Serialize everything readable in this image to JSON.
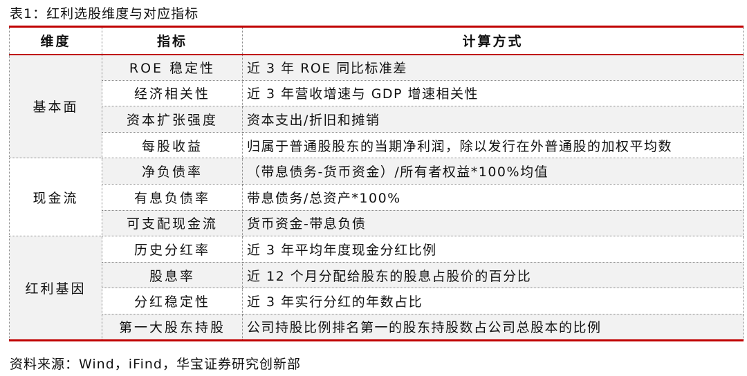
{
  "title": "表1：红利选股维度与对应指标",
  "headers": [
    "维度",
    "指标",
    "计算方式"
  ],
  "groups": [
    {
      "name": "基本面",
      "rows": [
        {
          "indicator": "ROE 稳定性",
          "method": "近 3 年 ROE 同比标准差"
        },
        {
          "indicator": "经济相关性",
          "method": "近 3 年营收增速与 GDP 增速相关性"
        },
        {
          "indicator": "资本扩张强度",
          "method": "资本支出/折旧和摊销"
        },
        {
          "indicator": "每股收益",
          "method": "归属于普通股股东的当期净利润，除以发行在外普通股的加权平均数"
        }
      ]
    },
    {
      "name": "现金流",
      "rows": [
        {
          "indicator": "净负债率",
          "method": "（带息债务-货币资金）/所有者权益*100%均值"
        },
        {
          "indicator": "有息负债率",
          "method": "带息债务/总资产*100%"
        },
        {
          "indicator": "可支配现金流",
          "method": "货币资金-带息负债"
        }
      ]
    },
    {
      "name": "红利基因",
      "rows": [
        {
          "indicator": "历史分红率",
          "method": "近 3 年平均年度现金分红比例"
        },
        {
          "indicator": "股息率",
          "method": "近 12 个月分配给股东的股息占股价的百分比"
        },
        {
          "indicator": "分红稳定性",
          "method": "近 3 年实行分红的年数占比"
        },
        {
          "indicator": "第一大股东持股",
          "method": "公司持股比例排名第一的股东持股数占公司总股本的比例"
        }
      ]
    }
  ],
  "footer": "资料来源：Wind，iFind，华宝证券研究创新部",
  "colors": {
    "accent": "#c00000",
    "shade": "#f2f2f2"
  }
}
